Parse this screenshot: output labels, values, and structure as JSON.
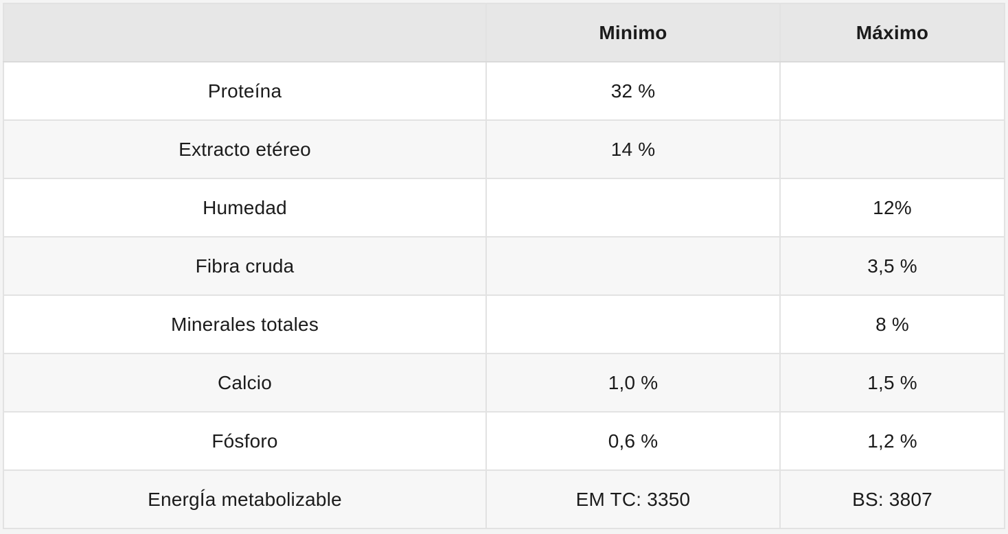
{
  "table": {
    "columns": {
      "label": "",
      "min": "Minimo",
      "max": "Máximo"
    },
    "rows": [
      {
        "label": "Proteína",
        "min": "32 %",
        "max": ""
      },
      {
        "label": "Extracto etéreo",
        "min": "14 %",
        "max": ""
      },
      {
        "label": "Humedad",
        "min": "",
        "max": "12%"
      },
      {
        "label": "Fibra cruda",
        "min": "",
        "max": "3,5 %"
      },
      {
        "label": "Minerales totales",
        "min": "",
        "max": "8 %"
      },
      {
        "label": "Calcio",
        "min": "1,0 %",
        "max": "1,5 %"
      },
      {
        "label": "Fósforo",
        "min": "0,6 %",
        "max": "1,2 %"
      },
      {
        "label": "EnergÍa metabolizable",
        "min": "EM TC: 3350",
        "max": "BS: 3807"
      }
    ],
    "colors": {
      "page_background": "#f4f4f4",
      "header_background": "#e7e7e7",
      "row_alt_background": "#f7f7f7",
      "row_background": "#ffffff",
      "border": "#e2e2e2",
      "text": "#1b1b1b"
    }
  }
}
